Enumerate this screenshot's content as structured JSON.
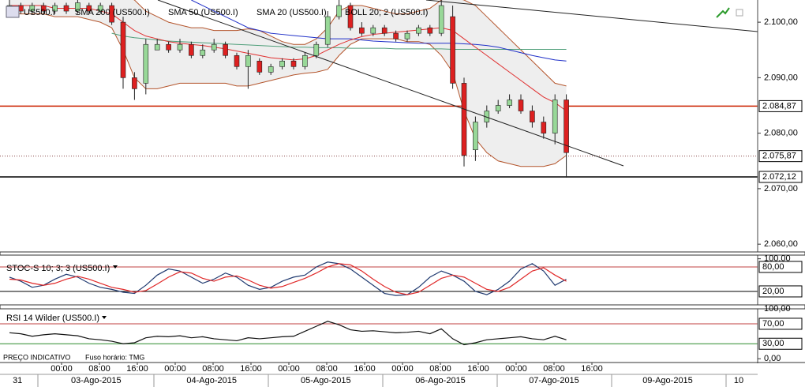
{
  "chart_data": [
    {
      "type": "candlestick",
      "title": "US500.I",
      "x": [
        -11,
        -8.6,
        -6.2,
        -3.8,
        -1.4,
        1,
        3.4,
        5.8,
        8.2,
        10.6,
        13,
        15.4,
        17.8,
        20.2,
        22.6,
        25,
        27.4,
        29.8,
        32.2,
        34.6,
        37,
        39.4,
        41.8,
        44.2,
        46.6,
        49,
        51.4,
        53.8,
        56.2,
        58.6,
        61,
        63.4,
        65.8,
        68.2,
        70.6,
        73,
        75.4,
        77.8,
        80.2,
        82.6,
        85,
        87.4,
        89.8,
        92.2,
        94.6,
        97,
        99.4,
        101.8,
        104.2,
        106.6
      ],
      "open": [
        2102,
        2103,
        2102,
        2103,
        2102,
        2103,
        2102,
        2103,
        2102,
        2103,
        2100,
        2090,
        2089,
        2095,
        2096,
        2095,
        2096,
        2094,
        2095,
        2096,
        2094,
        2092,
        2093,
        2091,
        2092,
        2093,
        2092,
        2094,
        2096,
        2101,
        2103,
        2099,
        2098,
        2099,
        2098,
        2097,
        2098,
        2099,
        2098,
        2101,
        2089,
        2077,
        2082,
        2084,
        2085,
        2086,
        2084,
        2082,
        2080,
        2086
      ],
      "high": [
        2104,
        2103.5,
        2103.5,
        2103.5,
        2103.5,
        2103.5,
        2104,
        2103.5,
        2103.5,
        2103.5,
        2101,
        2091,
        2097,
        2097,
        2096.5,
        2097,
        2096.5,
        2096,
        2097,
        2096.5,
        2094.5,
        2095,
        2093.5,
        2092.5,
        2093.5,
        2093.5,
        2094.5,
        2096.5,
        2102,
        2104,
        2103.5,
        2100,
        2099.5,
        2099.5,
        2098.5,
        2098.5,
        2099.5,
        2099.5,
        2104,
        2103,
        2090,
        2083,
        2085,
        2086,
        2087,
        2087,
        2085,
        2083,
        2087,
        2087
      ],
      "low": [
        2101.5,
        2101.5,
        2101.5,
        2101.5,
        2101.5,
        2101.5,
        2101.5,
        2101.5,
        2101.5,
        2099.5,
        2088,
        2086,
        2087,
        2095,
        2094.5,
        2094.5,
        2093.5,
        2093.5,
        2094.5,
        2093.5,
        2091.5,
        2088,
        2090.5,
        2090.5,
        2091.5,
        2091.5,
        2091.5,
        2093.5,
        2095.5,
        2100.5,
        2098.5,
        2097.5,
        2097.5,
        2097.5,
        2096.5,
        2096.5,
        2097.5,
        2097.5,
        2097.5,
        2088,
        2074,
        2075,
        2081,
        2083.5,
        2084.5,
        2083.5,
        2081,
        2079,
        2078,
        2072
      ],
      "close": [
        2103,
        2102,
        2103,
        2102,
        2103,
        2102,
        2103.5,
        2102,
        2103,
        2100,
        2090,
        2088,
        2096,
        2096,
        2095,
        2096,
        2094,
        2095,
        2096,
        2094,
        2092,
        2094,
        2091,
        2092,
        2093,
        2092,
        2094,
        2096,
        2101,
        2103,
        2099,
        2098,
        2099,
        2098,
        2097,
        2098,
        2099,
        2098,
        2103,
        2089,
        2076,
        2082,
        2084,
        2085,
        2086,
        2084,
        2082,
        2080,
        2086,
        2076.5
      ],
      "up_color": "#98d898",
      "down_color": "#dd2020",
      "series": [
        {
          "name": "SMA 200 (US500.I)",
          "color": "#4f9f7a",
          "values": [
            null,
            null,
            null,
            null,
            null,
            null,
            null,
            null,
            null,
            2098,
            2097.5,
            2097.2,
            2097,
            2096.8,
            2096.6,
            2096.5,
            2096.4,
            2096.3,
            2096.2,
            2096.1,
            2096,
            2095.9,
            2095.8,
            2095.7,
            2095.6,
            2095.5,
            2095.5,
            2095.4,
            2095.4,
            2095.4,
            2095.3,
            2095.3,
            2095.3,
            2095.3,
            2095.2,
            2095.2,
            2095.2,
            2095.2,
            2095.2,
            2095.1,
            2095.1,
            2095.1,
            2095.1,
            2095.1,
            2095.1,
            2095.1,
            2095.1,
            2095.1,
            2095.1,
            2095.1
          ]
        },
        {
          "name": "SMA 50 (US500.I)",
          "color": "#2030c8",
          "values": [
            null,
            null,
            null,
            null,
            null,
            null,
            null,
            null,
            null,
            null,
            null,
            null,
            null,
            null,
            null,
            null,
            2104,
            2103,
            2102,
            2101,
            2100,
            2099,
            2098.5,
            2098,
            2097.8,
            2097.6,
            2097.4,
            2097.2,
            2097,
            2097,
            2097,
            2096.8,
            2096.6,
            2096.5,
            2096.4,
            2096.3,
            2096.2,
            2096.2,
            2096.2,
            2096.2,
            2096.1,
            2096,
            2095.8,
            2095.5,
            2095,
            2094.5,
            2094,
            2093.6,
            2093.2,
            2093
          ]
        },
        {
          "name": "SMA 20 (US500.I)",
          "color": "#e03030",
          "values": [
            2103,
            2103,
            2103,
            2103,
            2102.5,
            2102.5,
            2102.5,
            2102.5,
            2102,
            2101.5,
            2100,
            2098.5,
            2097.5,
            2097,
            2096.5,
            2096.2,
            2096,
            2095.8,
            2095.5,
            2095.2,
            2094.8,
            2094.4,
            2094,
            2093.6,
            2093.4,
            2093.2,
            2093.4,
            2094,
            2095,
            2096,
            2096.8,
            2097.4,
            2097.8,
            2098,
            2098.2,
            2098.4,
            2098.6,
            2098.8,
            2099,
            2098.5,
            2097,
            2095.5,
            2094,
            2092.5,
            2091,
            2089.5,
            2088,
            2086.5,
            2085.5,
            2084
          ]
        }
      ],
      "band": {
        "name": "BOLL 20; 2 (US500.I)",
        "color": "#b4552c",
        "fill": "#eeeeee",
        "upper": [
          2104.5,
          2104.5,
          2104.5,
          2104.5,
          2104.5,
          2104.5,
          2104.5,
          2104.5,
          2104.5,
          2104.5,
          2105,
          2104,
          2102,
          2101,
          2100,
          2099.5,
          2099,
          2099,
          2098.5,
          2098.5,
          2098.5,
          2098.8,
          2098.5,
          2097.5,
          2096.5,
          2096,
          2096,
          2097,
          2099,
          2102,
          2103,
          2103,
          2102.5,
          2102,
          2101.5,
          2101.5,
          2102,
          2102.5,
          2104,
          2104.5,
          2104,
          2103,
          2101,
          2099,
          2097,
          2095,
          2093,
          2091,
          2089,
          2088.5
        ],
        "lower": [
          2101.5,
          2101.5,
          2101.5,
          2101.5,
          2101,
          2101,
          2101,
          2100.5,
          2100,
          2099,
          2095,
          2090,
          2088,
          2088,
          2088.5,
          2089,
          2089,
          2089,
          2089,
          2089,
          2088.5,
          2088.5,
          2089,
          2089.5,
          2090,
          2090.5,
          2090.8,
          2091,
          2091.5,
          2094,
          2096,
          2097,
          2097,
          2097,
          2097,
          2096.5,
          2096.5,
          2096,
          2094,
          2091,
          2084,
          2079,
          2076.5,
          2075,
          2074.5,
          2074,
          2074,
          2074,
          2074.5,
          2076
        ]
      },
      "levels": [
        {
          "value": 2084.87,
          "label": "2.084,87",
          "color": "#cc2200",
          "style": "solid"
        },
        {
          "value": 2075.87,
          "label": "2.075,87",
          "color": "#884444",
          "style": "dotted"
        },
        {
          "value": 2072.12,
          "label": "2.072,12",
          "color": "#000000",
          "style": "solid"
        }
      ],
      "ylim": [
        2058.6,
        2104
      ],
      "yticks": [
        {
          "value": 2100,
          "label": "2.100,00"
        },
        {
          "value": 2090,
          "label": "2.090,00"
        },
        {
          "value": 2080,
          "label": "2.080,00"
        },
        {
          "value": 2070,
          "label": "2.070,00"
        },
        {
          "value": 2060,
          "label": "2.060,00"
        }
      ],
      "xlim": [
        -13,
        147
      ],
      "xticks": [
        {
          "value": 0,
          "label": "00:00"
        },
        {
          "value": 8,
          "label": "08:00"
        },
        {
          "value": 16,
          "label": "16:00"
        },
        {
          "value": 24,
          "label": "00:00"
        },
        {
          "value": 32,
          "label": "08:00"
        },
        {
          "value": 40,
          "label": "16:00"
        },
        {
          "value": 48,
          "label": "00:00"
        },
        {
          "value": 56,
          "label": "08:00"
        },
        {
          "value": 64,
          "label": "16:00"
        },
        {
          "value": 72,
          "label": "00:00"
        },
        {
          "value": 80,
          "label": "08:00"
        },
        {
          "value": 88,
          "label": "16:00"
        },
        {
          "value": 96,
          "label": "00:00"
        },
        {
          "value": 104,
          "label": "08:00"
        },
        {
          "value": 112,
          "label": "16:00"
        }
      ],
      "date_ticks": [
        {
          "value": -9.3,
          "label": "31"
        },
        {
          "value": 7.3,
          "label": "03-Ago-2015"
        },
        {
          "value": 31.7,
          "label": "04-Ago-2015"
        },
        {
          "value": 55.8,
          "label": "05-Ago-2015"
        },
        {
          "value": 80,
          "label": "06-Ago-2015"
        },
        {
          "value": 104,
          "label": "07-Ago-2015"
        },
        {
          "value": 128,
          "label": "09-Ago-2015"
        },
        {
          "value": 143,
          "label": "10"
        }
      ],
      "notes": [
        "PREÇO INDICATIVO",
        "Fuso horário: TMG"
      ]
    },
    {
      "type": "line",
      "title": "STOC-S 10; 3; 3 (US500.I)",
      "series": [
        {
          "color": "#203a70",
          "values": [
            55,
            45,
            30,
            35,
            50,
            62,
            55,
            40,
            30,
            25,
            18,
            15,
            35,
            60,
            75,
            70,
            55,
            40,
            50,
            65,
            55,
            35,
            25,
            30,
            45,
            55,
            60,
            80,
            92,
            88,
            75,
            55,
            35,
            15,
            10,
            12,
            30,
            55,
            70,
            60,
            45,
            20,
            12,
            25,
            45,
            75,
            88,
            70,
            35,
            50
          ]
        },
        {
          "color": "#e02828",
          "values": [
            50,
            48,
            40,
            35,
            40,
            50,
            57,
            50,
            40,
            30,
            25,
            18,
            22,
            38,
            55,
            68,
            65,
            52,
            45,
            55,
            58,
            48,
            35,
            28,
            32,
            42,
            52,
            65,
            80,
            88,
            85,
            70,
            50,
            32,
            18,
            12,
            18,
            35,
            52,
            60,
            55,
            40,
            25,
            20,
            30,
            50,
            70,
            78,
            60,
            45
          ]
        }
      ],
      "levels": [
        {
          "value": 80,
          "label": "80,00",
          "color": "#c04040"
        },
        {
          "value": 20,
          "label": "20,00",
          "color": "#000000"
        }
      ],
      "ylim": [
        -13,
        109
      ],
      "yticks": [
        {
          "value": 100,
          "label": "100,00"
        }
      ]
    },
    {
      "type": "line",
      "title": "RSI 14 Wilder (US500.I)",
      "series": [
        {
          "color": "#111111",
          "values": [
            52,
            50,
            45,
            48,
            50,
            48,
            46,
            40,
            38,
            35,
            30,
            32,
            42,
            45,
            44,
            46,
            42,
            44,
            40,
            38,
            36,
            42,
            40,
            42,
            44,
            45,
            55,
            65,
            75,
            68,
            58,
            55,
            56,
            54,
            52,
            53,
            55,
            50,
            60,
            40,
            28,
            32,
            38,
            40,
            42,
            44,
            40,
            38,
            45,
            38
          ]
        }
      ],
      "levels": [
        {
          "value": 70,
          "label": "70,00",
          "color": "#c04040"
        },
        {
          "value": 30,
          "label": "30,00",
          "color": "#2a8a2a"
        }
      ],
      "ylim": [
        -6,
        100
      ],
      "yticks": [
        {
          "value": 100,
          "label": "100,00"
        },
        {
          "value": 0,
          "label": "0,00"
        }
      ]
    }
  ]
}
